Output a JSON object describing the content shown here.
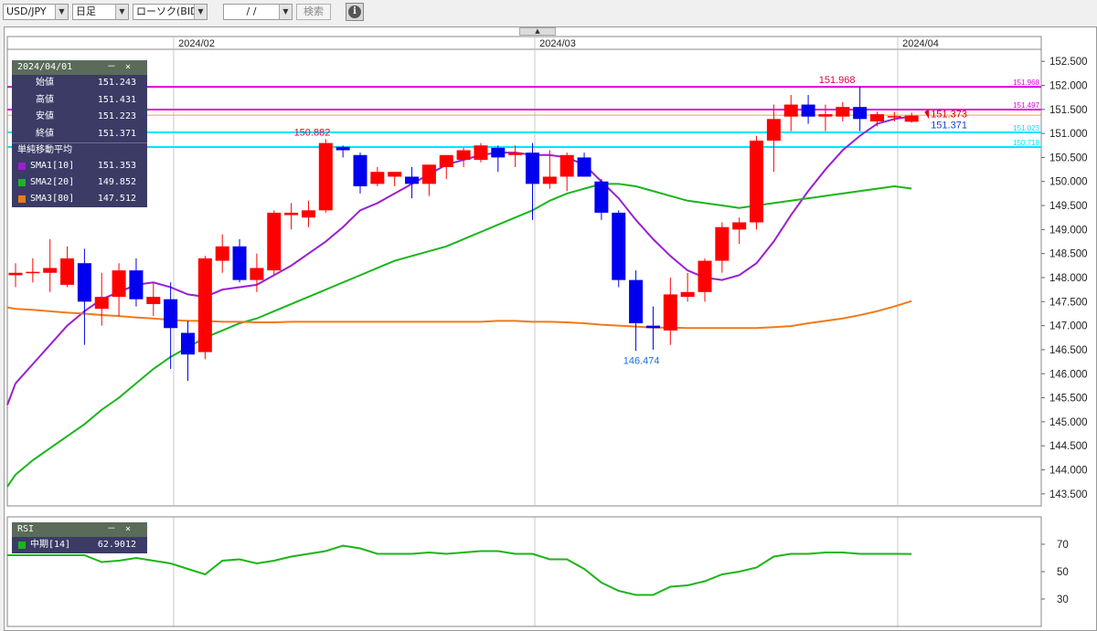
{
  "toolbar": {
    "pair": "USD/JPY",
    "timeframe": "日足",
    "chart_kind": "ローソク(BID)",
    "date": "/ /",
    "search_label": "検索",
    "info_icon": "i"
  },
  "ohlc": {
    "date": "2024/04/01",
    "min_ctl": "－",
    "close_ctl": "×",
    "rows": [
      {
        "label": "始値",
        "value": "151.243"
      },
      {
        "label": "高値",
        "value": "151.431"
      },
      {
        "label": "安値",
        "value": "151.223"
      },
      {
        "label": "終値",
        "value": "151.371"
      }
    ]
  },
  "sma": {
    "title": "単純移動平均",
    "rows": [
      {
        "label": "SMA1[10]",
        "value": "151.353",
        "color": "#9b1fd1"
      },
      {
        "label": "SMA2[20]",
        "value": "149.852",
        "color": "#1bb51b"
      },
      {
        "label": "SMA3[80]",
        "value": "147.512",
        "color": "#ef7a1a"
      }
    ]
  },
  "rsi": {
    "title": "RSI",
    "min_ctl": "－",
    "close_ctl": "×",
    "row_label": "中期[14]",
    "row_value": "62.9012",
    "color": "#1bb51b"
  },
  "colors": {
    "up": "#ff0000",
    "down": "#0000ee",
    "hline_magenta": "#e000e0",
    "hline_cyan": "#00e5ff",
    "hline_orange": "#f0a030"
  },
  "chart_data": {
    "type": "candlestick",
    "symbol": "USD/JPY",
    "ylim": [
      143.25,
      152.75
    ],
    "yticks": [
      "152.500",
      "152.000",
      "151.500",
      "151.000",
      "150.500",
      "150.000",
      "149.500",
      "149.000",
      "148.500",
      "148.000",
      "147.500",
      "147.000",
      "146.500",
      "146.000",
      "145.500",
      "145.000",
      "144.500",
      "144.000",
      "143.500"
    ],
    "xticks": [
      "2024/02",
      "2024/03",
      "2024/04"
    ],
    "annotations": {
      "high_label": "150.882",
      "mid_high_label": "151.968",
      "low_label": "146.474",
      "last_red": "151.373",
      "last_blue": "151.371"
    },
    "hlines": [
      {
        "label": "151.968",
        "value": 151.968,
        "color": "#e000e0"
      },
      {
        "label": "151.497",
        "value": 151.497,
        "color": "#e000e0"
      },
      {
        "label": "",
        "value": 151.38,
        "color": "#f0a030"
      },
      {
        "label": "151.023",
        "value": 151.023,
        "color": "#00e5ff"
      },
      {
        "label": "150.718",
        "value": 150.718,
        "color": "#00e5ff"
      }
    ],
    "candles": [
      {
        "o": 148.05,
        "h": 148.3,
        "l": 147.8,
        "c": 148.1
      },
      {
        "o": 148.1,
        "h": 148.4,
        "l": 147.9,
        "c": 148.12
      },
      {
        "o": 148.1,
        "h": 148.8,
        "l": 147.7,
        "c": 148.2
      },
      {
        "o": 147.85,
        "h": 148.65,
        "l": 147.8,
        "c": 148.4
      },
      {
        "o": 148.3,
        "h": 148.6,
        "l": 146.6,
        "c": 147.5
      },
      {
        "o": 147.35,
        "h": 148.1,
        "l": 147.0,
        "c": 147.6
      },
      {
        "o": 147.6,
        "h": 148.3,
        "l": 147.2,
        "c": 148.15
      },
      {
        "o": 148.15,
        "h": 148.4,
        "l": 147.4,
        "c": 147.55
      },
      {
        "o": 147.45,
        "h": 147.9,
        "l": 147.2,
        "c": 147.6
      },
      {
        "o": 147.55,
        "h": 147.9,
        "l": 146.1,
        "c": 146.95
      },
      {
        "o": 146.85,
        "h": 147.1,
        "l": 145.85,
        "c": 146.4
      },
      {
        "o": 146.45,
        "h": 148.45,
        "l": 146.3,
        "c": 148.4
      },
      {
        "o": 148.35,
        "h": 148.9,
        "l": 148.1,
        "c": 148.65
      },
      {
        "o": 148.65,
        "h": 148.8,
        "l": 147.9,
        "c": 147.95
      },
      {
        "o": 147.95,
        "h": 148.5,
        "l": 147.7,
        "c": 148.2
      },
      {
        "o": 148.15,
        "h": 149.4,
        "l": 148.05,
        "c": 149.35
      },
      {
        "o": 149.3,
        "h": 149.55,
        "l": 149.0,
        "c": 149.35
      },
      {
        "o": 149.25,
        "h": 149.6,
        "l": 149.05,
        "c": 149.4
      },
      {
        "o": 149.4,
        "h": 150.88,
        "l": 149.35,
        "c": 150.8
      },
      {
        "o": 150.72,
        "h": 150.75,
        "l": 150.5,
        "c": 150.65
      },
      {
        "o": 150.55,
        "h": 150.6,
        "l": 149.75,
        "c": 149.9
      },
      {
        "o": 149.95,
        "h": 150.3,
        "l": 149.9,
        "c": 150.2
      },
      {
        "o": 150.1,
        "h": 150.2,
        "l": 149.9,
        "c": 150.2
      },
      {
        "o": 150.1,
        "h": 150.3,
        "l": 149.65,
        "c": 149.95
      },
      {
        "o": 149.95,
        "h": 150.35,
        "l": 149.7,
        "c": 150.35
      },
      {
        "o": 150.3,
        "h": 150.55,
        "l": 150.05,
        "c": 150.55
      },
      {
        "o": 150.45,
        "h": 150.7,
        "l": 150.3,
        "c": 150.65
      },
      {
        "o": 150.45,
        "h": 150.8,
        "l": 150.4,
        "c": 150.75
      },
      {
        "o": 150.7,
        "h": 150.75,
        "l": 150.2,
        "c": 150.5
      },
      {
        "o": 150.55,
        "h": 150.75,
        "l": 150.3,
        "c": 150.6
      },
      {
        "o": 150.6,
        "h": 150.8,
        "l": 149.2,
        "c": 149.95
      },
      {
        "o": 149.95,
        "h": 150.65,
        "l": 149.85,
        "c": 150.1
      },
      {
        "o": 150.1,
        "h": 150.6,
        "l": 149.8,
        "c": 150.55
      },
      {
        "o": 150.5,
        "h": 150.6,
        "l": 150.1,
        "c": 150.1
      },
      {
        "o": 150.0,
        "h": 150.05,
        "l": 149.2,
        "c": 149.35
      },
      {
        "o": 149.35,
        "h": 149.4,
        "l": 147.8,
        "c": 147.95
      },
      {
        "o": 147.95,
        "h": 148.15,
        "l": 146.474,
        "c": 147.05
      },
      {
        "o": 147.0,
        "h": 147.4,
        "l": 146.5,
        "c": 146.95
      },
      {
        "o": 146.9,
        "h": 148.0,
        "l": 146.6,
        "c": 147.65
      },
      {
        "o": 147.6,
        "h": 148.1,
        "l": 147.5,
        "c": 147.7
      },
      {
        "o": 147.7,
        "h": 148.4,
        "l": 147.5,
        "c": 148.35
      },
      {
        "o": 148.35,
        "h": 149.15,
        "l": 148.1,
        "c": 149.05
      },
      {
        "o": 149.0,
        "h": 149.25,
        "l": 148.7,
        "c": 149.15
      },
      {
        "o": 149.15,
        "h": 150.95,
        "l": 149.0,
        "c": 150.85
      },
      {
        "o": 150.85,
        "h": 151.6,
        "l": 150.2,
        "c": 151.3
      },
      {
        "o": 151.35,
        "h": 151.8,
        "l": 151.05,
        "c": 151.6
      },
      {
        "o": 151.6,
        "h": 151.8,
        "l": 151.2,
        "c": 151.35
      },
      {
        "o": 151.35,
        "h": 151.6,
        "l": 151.05,
        "c": 151.4
      },
      {
        "o": 151.35,
        "h": 151.65,
        "l": 151.25,
        "c": 151.55
      },
      {
        "o": 151.55,
        "h": 151.968,
        "l": 151.05,
        "c": 151.3
      },
      {
        "o": 151.25,
        "h": 151.45,
        "l": 151.15,
        "c": 151.4
      },
      {
        "o": 151.35,
        "h": 151.45,
        "l": 151.25,
        "c": 151.36
      },
      {
        "o": 151.243,
        "h": 151.431,
        "l": 151.223,
        "c": 151.371
      }
    ],
    "series": [
      {
        "name": "SMA1[10]",
        "values": [
          145.8,
          146.2,
          146.6,
          147.0,
          147.3,
          147.55,
          147.7,
          147.85,
          147.9,
          147.8,
          147.65,
          147.6,
          147.75,
          147.8,
          147.85,
          148.05,
          148.25,
          148.5,
          148.75,
          149.05,
          149.4,
          149.55,
          149.75,
          149.95,
          150.15,
          150.35,
          150.45,
          150.55,
          150.6,
          150.6,
          150.55,
          150.55,
          150.5,
          150.35,
          150.0,
          149.65,
          149.2,
          148.8,
          148.45,
          148.15,
          148.0,
          147.95,
          148.05,
          148.3,
          148.75,
          149.3,
          149.8,
          150.25,
          150.65,
          150.95,
          151.2,
          151.3,
          151.353
        ]
      },
      {
        "name": "SMA2[20]",
        "values": [
          143.9,
          144.2,
          144.45,
          144.7,
          144.95,
          145.25,
          145.5,
          145.8,
          146.1,
          146.35,
          146.55,
          146.75,
          146.9,
          147.05,
          147.15,
          147.3,
          147.45,
          147.6,
          147.75,
          147.9,
          148.05,
          148.2,
          148.35,
          148.45,
          148.55,
          148.65,
          148.8,
          148.95,
          149.1,
          149.25,
          149.4,
          149.6,
          149.75,
          149.85,
          149.95,
          149.95,
          149.9,
          149.8,
          149.7,
          149.6,
          149.55,
          149.5,
          149.45,
          149.5,
          149.55,
          149.6,
          149.65,
          149.7,
          149.75,
          149.8,
          149.85,
          149.9,
          149.852
        ]
      },
      {
        "name": "SMA3[80]",
        "values": [
          147.35,
          147.33,
          147.3,
          147.27,
          147.25,
          147.22,
          147.2,
          147.17,
          147.15,
          147.12,
          147.1,
          147.1,
          147.08,
          147.08,
          147.07,
          147.07,
          147.08,
          147.08,
          147.08,
          147.08,
          147.08,
          147.08,
          147.08,
          147.08,
          147.08,
          147.08,
          147.08,
          147.08,
          147.1,
          147.1,
          147.08,
          147.08,
          147.07,
          147.05,
          147.02,
          147.0,
          146.98,
          146.96,
          146.96,
          146.95,
          146.95,
          146.95,
          146.95,
          146.95,
          146.97,
          146.99,
          147.05,
          147.1,
          147.15,
          147.22,
          147.3,
          147.4,
          147.512
        ]
      }
    ],
    "rsi": {
      "name": "中期[14]",
      "yticks": [
        "70",
        "50",
        "30"
      ],
      "ylim": [
        10,
        90
      ],
      "values": [
        62,
        62,
        62,
        62,
        62,
        57,
        58,
        60,
        58,
        56,
        52,
        48,
        58,
        59,
        56,
        58,
        61,
        63,
        65,
        69,
        67,
        63,
        63,
        63,
        64,
        63,
        64,
        65,
        65,
        63,
        63,
        59,
        59,
        52,
        42,
        36,
        33,
        33,
        39,
        40,
        43,
        48,
        50,
        53,
        61,
        63,
        63,
        64,
        64,
        63,
        63,
        63,
        62.9
      ]
    }
  }
}
